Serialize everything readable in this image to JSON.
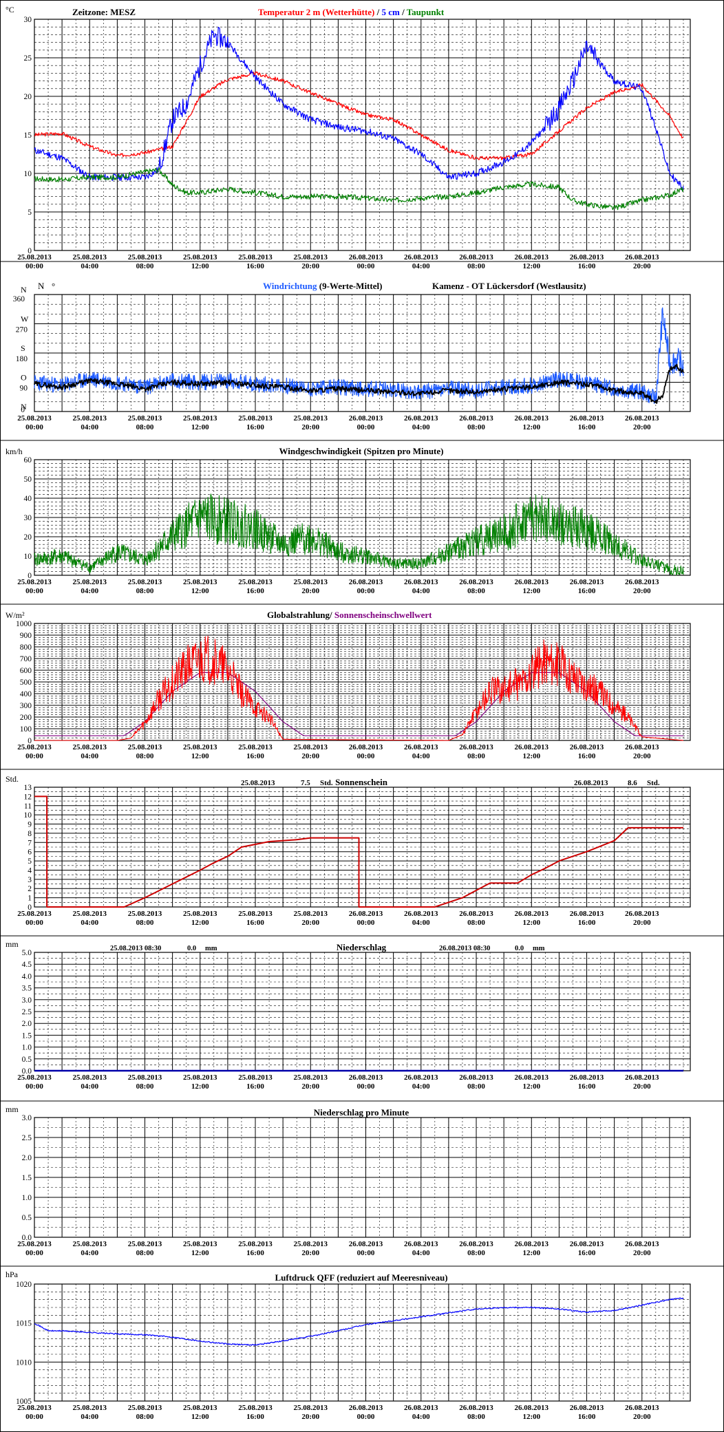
{
  "time_labels": [
    [
      "25.08.2013",
      "00:00"
    ],
    [
      "25.08.2013",
      "04:00"
    ],
    [
      "25.08.2013",
      "08:00"
    ],
    [
      "25.08.2013",
      "12:00"
    ],
    [
      "25.08.2013",
      "16:00"
    ],
    [
      "25.08.2013",
      "20:00"
    ],
    [
      "26.08.2013",
      "00:00"
    ],
    [
      "26.08.2013",
      "04:00"
    ],
    [
      "26.08.2013",
      "08:00"
    ],
    [
      "26.08.2013",
      "12:00"
    ],
    [
      "26.08.2013",
      "16:00"
    ],
    [
      "26.08.2013",
      "20:00"
    ]
  ],
  "colors": {
    "temp2m": "#ff0000",
    "temp5cm": "#0000ff",
    "dew": "#008000",
    "wind_dir": "#1e5bff",
    "wind_dir_avg": "#000000",
    "wind_speed": "#008000",
    "radiation": "#ff0000",
    "threshold": "#800080",
    "sunshine": "#cc0000",
    "precip": "#0000aa",
    "pressure": "#0000ff"
  },
  "chart_data": [
    {
      "id": "temperature",
      "type": "line",
      "unit": "°C",
      "timezone_label": "Zeitzone: MESZ",
      "title_parts": [
        "Temperatur 2 m (Wetterhütte)",
        "  /  ",
        "5 cm",
        " / ",
        "Taupunkt"
      ],
      "ylim": [
        0,
        30
      ],
      "yticks": [
        0,
        5,
        10,
        15,
        20,
        25,
        30
      ],
      "series": [
        {
          "name": "Temperatur 2 m (Wetterhütte)",
          "x": [
            0,
            2,
            4,
            6,
            8,
            10,
            12,
            14,
            16,
            18,
            20,
            22,
            24,
            26,
            28,
            30,
            32,
            34,
            36,
            38,
            40,
            42,
            44,
            46,
            47
          ],
          "values": [
            15,
            15.2,
            13.5,
            12.3,
            12.7,
            13.5,
            20,
            22.2,
            23,
            22,
            20.5,
            19,
            17.6,
            17,
            15,
            13,
            12,
            12,
            12.5,
            15.5,
            18.5,
            20.5,
            21.5,
            17.5,
            14.5
          ]
        },
        {
          "name": "5 cm",
          "x": [
            0,
            2,
            4,
            6,
            8,
            9,
            10,
            11,
            12,
            13,
            14,
            16,
            18,
            20,
            22,
            24,
            26,
            28,
            30,
            32,
            34,
            35,
            36,
            37,
            38,
            39,
            40,
            42,
            44,
            45,
            46,
            47
          ],
          "values": [
            13,
            12,
            9.5,
            9.5,
            9.5,
            10.5,
            17,
            19,
            24,
            28,
            27,
            22.5,
            19,
            17,
            16,
            15.5,
            14.5,
            12.5,
            9.5,
            10,
            11.5,
            12.5,
            14,
            16,
            18.5,
            22,
            26.5,
            22,
            21,
            16,
            10,
            8
          ]
        },
        {
          "name": "Taupunkt",
          "x": [
            0,
            2,
            4,
            6,
            8,
            9,
            10,
            11,
            12,
            14,
            16,
            18,
            20,
            22,
            24,
            26,
            28,
            30,
            32,
            34,
            36,
            38,
            39,
            40,
            42,
            44,
            46,
            47
          ],
          "values": [
            9.3,
            9.2,
            9.5,
            9.5,
            10.2,
            10.5,
            8.5,
            7.5,
            7.5,
            8,
            7.5,
            7,
            7,
            7,
            6.8,
            6.5,
            6.8,
            7,
            7.5,
            8.2,
            8.6,
            8.2,
            6.5,
            6,
            5.5,
            6.5,
            7.2,
            8
          ]
        }
      ]
    },
    {
      "id": "wind_direction",
      "type": "line",
      "unit": "N",
      "title_left": "Windrichtung",
      "title_left_suffix": " (9-Werte-Mittel)",
      "title_right": "Kamenz - OT Lückersdorf (Westlausitz)",
      "ylim": [
        0,
        360
      ],
      "ytick_values": [
        0,
        90,
        180,
        270,
        360
      ],
      "compass_labels": [
        {
          "label": "N",
          "value": 360
        },
        {
          "label": "W",
          "value": 270
        },
        {
          "label": "S",
          "value": 180
        },
        {
          "label": "O",
          "value": 90
        },
        {
          "label": "N",
          "value": 0
        }
      ],
      "series": [
        {
          "name": "Windrichtung",
          "x": [
            0,
            2,
            4,
            6,
            8,
            10,
            12,
            14,
            16,
            18,
            20,
            22,
            24,
            26,
            28,
            30,
            32,
            34,
            36,
            38,
            40,
            42,
            44,
            45,
            45.5,
            46,
            46.5,
            47
          ],
          "values": [
            90,
            80,
            100,
            90,
            75,
            95,
            90,
            95,
            85,
            80,
            70,
            75,
            70,
            65,
            60,
            70,
            65,
            75,
            80,
            100,
            90,
            70,
            60,
            40,
            300,
            150,
            160,
            140
          ]
        },
        {
          "name": "9-Werte-Mittel",
          "x": [
            0,
            2,
            4,
            6,
            8,
            10,
            12,
            14,
            16,
            18,
            20,
            22,
            24,
            26,
            28,
            30,
            32,
            34,
            36,
            38,
            40,
            42,
            44,
            45,
            45.5,
            46,
            46.5,
            47
          ],
          "values": [
            85,
            75,
            95,
            85,
            70,
            90,
            85,
            90,
            80,
            75,
            65,
            70,
            65,
            60,
            55,
            65,
            60,
            70,
            75,
            90,
            85,
            65,
            55,
            30,
            50,
            130,
            140,
            120
          ]
        }
      ]
    },
    {
      "id": "wind_speed",
      "type": "line",
      "unit": "km/h",
      "title": "Windgeschwindigkeit (Spitzen pro Minute)",
      "ylim": [
        0,
        60
      ],
      "yticks": [
        0,
        10,
        20,
        30,
        40,
        50,
        60
      ],
      "series": [
        {
          "name": "Windgeschwindigkeit",
          "x": [
            0,
            2,
            4,
            6,
            8,
            10,
            12,
            14,
            16,
            18,
            20,
            22,
            24,
            26,
            28,
            30,
            32,
            34,
            36,
            38,
            40,
            42,
            44,
            46,
            47
          ],
          "values": [
            8,
            10,
            4,
            12,
            8,
            20,
            30,
            28,
            24,
            16,
            20,
            12,
            10,
            6,
            6,
            12,
            18,
            22,
            30,
            26,
            24,
            16,
            8,
            3,
            2
          ]
        }
      ]
    },
    {
      "id": "radiation",
      "type": "line",
      "unit": "W/m²",
      "title_parts": [
        "Globalstrahlung/ ",
        "Sonnenscheinschwellwert"
      ],
      "ylim": [
        0,
        1000
      ],
      "yticks": [
        0,
        100,
        200,
        300,
        400,
        500,
        600,
        700,
        800,
        900,
        1000
      ],
      "series": [
        {
          "name": "Globalstrahlung",
          "x": [
            0,
            6,
            7,
            8,
            9,
            10,
            11,
            12,
            13,
            14,
            15,
            16,
            17,
            18,
            30,
            31,
            32,
            33,
            34,
            35,
            36,
            37,
            38,
            39,
            40,
            41,
            42,
            43,
            44,
            47
          ],
          "values": [
            0,
            0,
            20,
            150,
            350,
            500,
            620,
            700,
            680,
            600,
            400,
            280,
            200,
            10,
            0,
            50,
            250,
            420,
            440,
            480,
            560,
            700,
            640,
            560,
            480,
            400,
            300,
            200,
            30,
            0
          ]
        },
        {
          "name": "Sonnenscheinschwellwert",
          "x": [
            0,
            6.5,
            8,
            10,
            12,
            14,
            16,
            18,
            19.5,
            30.5,
            32,
            34,
            36,
            38,
            40,
            42,
            43.5,
            47
          ],
          "values": [
            40,
            40,
            160,
            420,
            580,
            580,
            420,
            160,
            40,
            40,
            160,
            420,
            580,
            580,
            420,
            160,
            40,
            40
          ]
        }
      ]
    },
    {
      "id": "sunshine",
      "type": "line",
      "unit": "Std.",
      "title": "Sonnenschein",
      "day_totals": [
        {
          "date": "25.08.2013",
          "value": "7.5",
          "unit": "Std."
        },
        {
          "date": "26.08.2013",
          "value": "8.6",
          "unit": "Std."
        }
      ],
      "ylim": [
        0,
        13
      ],
      "yticks": [
        0,
        1,
        2,
        3,
        4,
        5,
        6,
        7,
        8,
        9,
        10,
        11,
        12,
        13
      ],
      "series": [
        {
          "name": "Sonnenschein",
          "x": [
            0,
            0.9,
            0.9,
            6.5,
            8,
            10,
            12,
            13,
            14,
            15,
            17,
            18,
            19,
            20,
            23.5,
            23.5,
            29,
            30,
            31,
            32,
            33,
            34,
            35,
            36,
            37,
            38,
            40,
            42,
            43,
            47
          ],
          "values": [
            12,
            12,
            0,
            0,
            1,
            2.5,
            4,
            4.8,
            5.5,
            6.5,
            7.1,
            7.2,
            7.3,
            7.5,
            7.5,
            0,
            0,
            0.5,
            1,
            1.8,
            2.6,
            2.6,
            2.6,
            3.5,
            4.2,
            5,
            6,
            7.2,
            8.6,
            8.6
          ]
        }
      ]
    },
    {
      "id": "precipitation",
      "type": "line",
      "unit": "mm",
      "title": "Niederschlag",
      "day_totals": [
        {
          "date": "25.08.2013 08:30",
          "value": "0.0",
          "unit": "mm"
        },
        {
          "date": "26.08.2013 08:30",
          "value": "0.0",
          "unit": "mm"
        }
      ],
      "ylim": [
        0,
        5
      ],
      "yticks": [
        0,
        0.5,
        1,
        1.5,
        2,
        2.5,
        3,
        3.5,
        4,
        4.5,
        5
      ],
      "ytick_labels": [
        "0.0",
        "0.5",
        "1.0",
        "1.5",
        "2.0",
        "2.5",
        "3.0",
        "3.5",
        "4.0",
        "4.5",
        "5.0"
      ],
      "series": [
        {
          "name": "Niederschlag",
          "x": [
            0,
            47
          ],
          "values": [
            0,
            0
          ]
        }
      ]
    },
    {
      "id": "precipitation_minute",
      "type": "line",
      "unit": "mm",
      "title": "Niederschlag pro Minute",
      "ylim": [
        0,
        3
      ],
      "yticks": [
        0,
        0.5,
        1,
        1.5,
        2,
        2.5,
        3
      ],
      "ytick_labels": [
        "0.0",
        "0.5",
        "1.0",
        "1.5",
        "2.0",
        "2.5",
        "3.0"
      ],
      "series": [
        {
          "name": "Niederschlag pro Minute",
          "x": [
            0,
            47
          ],
          "values": [
            0,
            0
          ]
        }
      ]
    },
    {
      "id": "pressure",
      "type": "line",
      "unit": "hPa",
      "title": "Luftdruck QFF (reduziert auf Meeresniveau)",
      "ylim": [
        1005,
        1020
      ],
      "yticks": [
        1005,
        1010,
        1015,
        1020
      ],
      "series": [
        {
          "name": "Luftdruck QFF",
          "x": [
            0,
            1,
            2,
            4,
            6,
            8,
            10,
            12,
            14,
            16,
            18,
            20,
            22,
            24,
            26,
            28,
            30,
            32,
            34,
            36,
            38,
            40,
            42,
            44,
            46,
            47
          ],
          "values": [
            1015,
            1014,
            1014,
            1013.8,
            1013.6,
            1013.5,
            1013.2,
            1012.7,
            1012.3,
            1012.2,
            1012.7,
            1013.3,
            1014,
            1014.8,
            1015.3,
            1015.8,
            1016.3,
            1016.8,
            1017,
            1017,
            1016.8,
            1016.4,
            1016.6,
            1017.3,
            1018,
            1018.2
          ]
        }
      ]
    }
  ]
}
